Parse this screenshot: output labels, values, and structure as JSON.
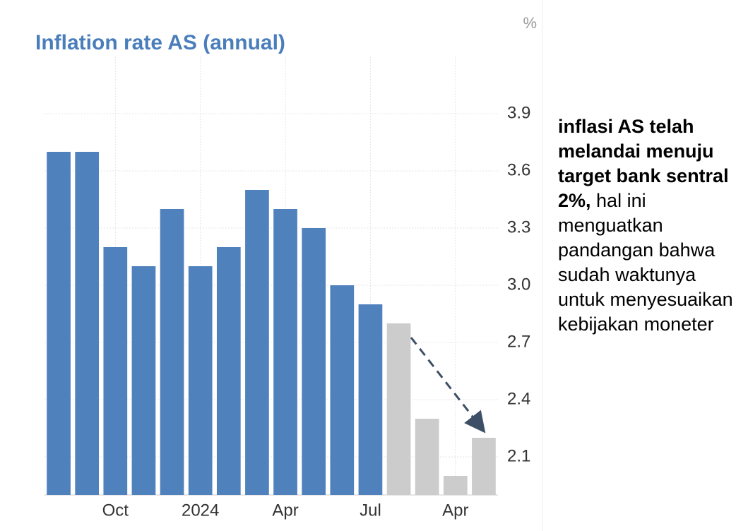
{
  "chart_data": {
    "type": "bar",
    "title": "Inflation rate AS (annual)",
    "unit": "%",
    "categories": [
      null,
      null,
      "Oct",
      null,
      null,
      "2024",
      null,
      null,
      "Apr",
      null,
      null,
      "Jul",
      null,
      null,
      "Apr",
      null
    ],
    "values": [
      3.7,
      3.7,
      3.2,
      3.1,
      3.4,
      3.1,
      3.2,
      3.5,
      3.4,
      3.3,
      3.0,
      2.9,
      2.8,
      2.3,
      2.0,
      2.2
    ],
    "colors": [
      "#4f81bd",
      "#4f81bd",
      "#4f81bd",
      "#4f81bd",
      "#4f81bd",
      "#4f81bd",
      "#4f81bd",
      "#4f81bd",
      "#4f81bd",
      "#4f81bd",
      "#4f81bd",
      "#4f81bd",
      "#cccccc",
      "#cccccc",
      "#cccccc",
      "#cccccc"
    ],
    "ylim": [
      1.9,
      4.2
    ],
    "yticks": [
      2.1,
      2.4,
      2.7,
      {
        "value": 3,
        "label": "3.0"
      },
      3.3,
      3.6,
      3.9
    ],
    "grid": true,
    "annotation": {
      "bold": "inflasi AS telah melandai menuju target bank sentral 2%,",
      "text": " hal ini menguatkan pandangan bahwa sudah waktunya untuk menyesuaikan kebijakan moneter"
    }
  }
}
